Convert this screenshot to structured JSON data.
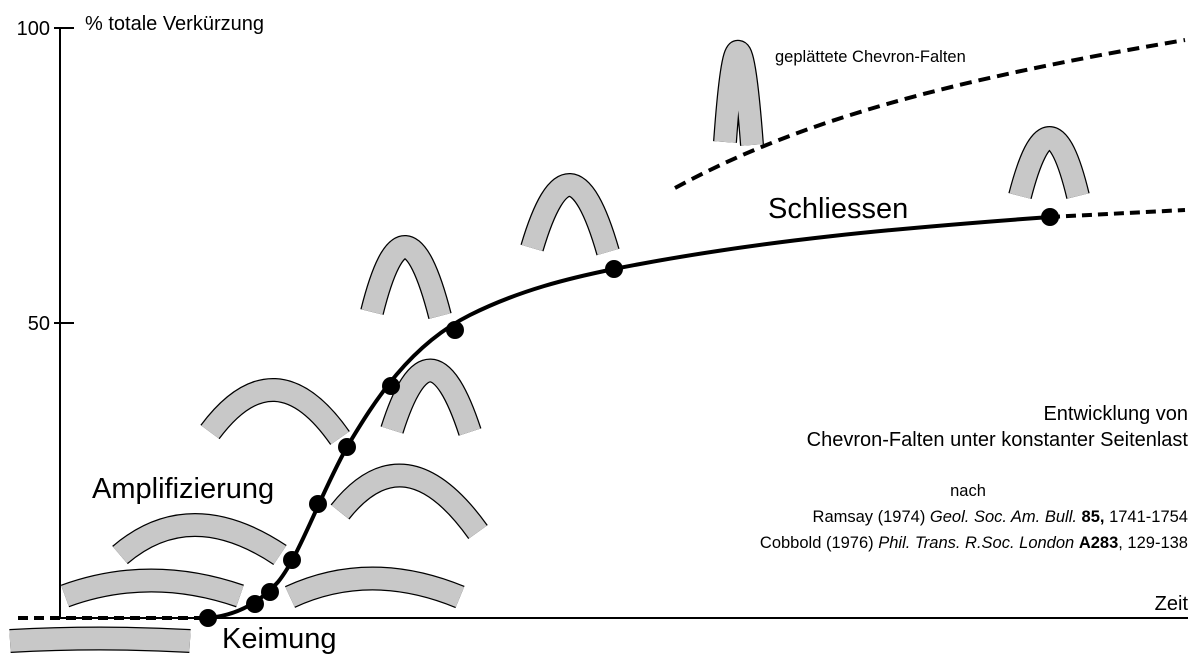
{
  "y_axis": {
    "label": "% totale Verkürzung",
    "ticks": [
      100,
      50
    ],
    "lim": [
      0,
      100
    ]
  },
  "x_axis": {
    "label": "Zeit"
  },
  "stages": {
    "nucleation": "Keimung",
    "amplification": "Amplifizierung",
    "closing": "Schliessen",
    "flattened": "geplättete Chevron-Falten"
  },
  "caption": {
    "line1": "Entwicklung von",
    "line2": "Chevron-Falten unter konstanter Seitenlast",
    "after": "nach"
  },
  "references": [
    {
      "author": "Ramsay (1974)",
      "journal": "Geol. Soc. Am. Bull.",
      "volume": "85,",
      "pages": "1741-1754"
    },
    {
      "author": "Cobbold (1976)",
      "journal": "Phil. Trans. R.Soc. London",
      "volume": "A283",
      "pages": ", 129-138"
    }
  ]
}
